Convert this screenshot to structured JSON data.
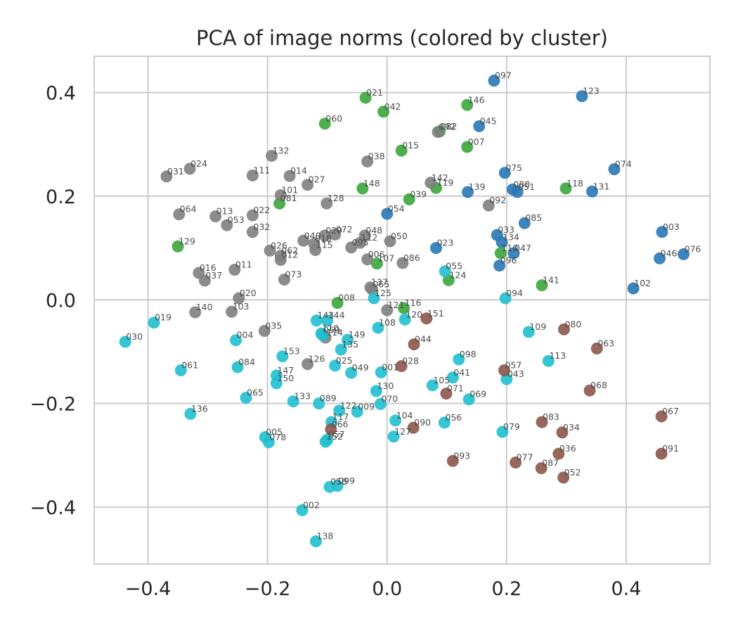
{
  "chart_data": {
    "type": "scatter",
    "title": "PCA of image norms (colored by cluster)",
    "xlabel": "",
    "ylabel": "",
    "xlim": [
      -0.49,
      0.54
    ],
    "ylim": [
      -0.51,
      0.47
    ],
    "xticks": [
      -0.4,
      -0.2,
      0.0,
      0.2,
      0.4
    ],
    "yticks": [
      -0.4,
      -0.2,
      0.0,
      0.2,
      0.4
    ],
    "xtick_labels": [
      "−0.4",
      "−0.2",
      "0.0",
      "0.2",
      "0.4"
    ],
    "ytick_labels": [
      "−0.4",
      "−0.2",
      "0.0",
      "0.2",
      "0.4"
    ],
    "grid": true,
    "legend": "none",
    "cluster_colors": {
      "blue": "#2878b5",
      "green": "#3aa63a",
      "gray": "#7f7f7f",
      "cyan": "#1fbfd0",
      "brown": "#8c564b"
    },
    "points": [
      {
        "label": "097",
        "x": 0.179,
        "y": 0.423,
        "cluster": "blue"
      },
      {
        "label": "123",
        "x": 0.326,
        "y": 0.393,
        "cluster": "blue"
      },
      {
        "label": "045",
        "x": 0.154,
        "y": 0.335,
        "cluster": "blue"
      },
      {
        "label": "075",
        "x": 0.197,
        "y": 0.245,
        "cluster": "blue"
      },
      {
        "label": "074",
        "x": 0.38,
        "y": 0.252,
        "cluster": "blue"
      },
      {
        "label": "088",
        "x": 0.21,
        "y": 0.213,
        "cluster": "blue"
      },
      {
        "label": "051",
        "x": 0.218,
        "y": 0.208,
        "cluster": "blue"
      },
      {
        "label": "139",
        "x": 0.135,
        "y": 0.208,
        "cluster": "blue"
      },
      {
        "label": "131",
        "x": 0.343,
        "y": 0.209,
        "cluster": "blue"
      },
      {
        "label": "054",
        "x": 0.0,
        "y": 0.166,
        "cluster": "blue"
      },
      {
        "label": "085",
        "x": 0.23,
        "y": 0.148,
        "cluster": "blue"
      },
      {
        "label": "003",
        "x": 0.46,
        "y": 0.131,
        "cluster": "blue"
      },
      {
        "label": "033",
        "x": 0.184,
        "y": 0.125,
        "cluster": "blue"
      },
      {
        "label": "134",
        "x": 0.192,
        "y": 0.111,
        "cluster": "blue"
      },
      {
        "label": "023",
        "x": 0.082,
        "y": 0.1,
        "cluster": "blue"
      },
      {
        "label": "047",
        "x": 0.212,
        "y": 0.09,
        "cluster": "blue"
      },
      {
        "label": "096",
        "x": 0.188,
        "y": 0.066,
        "cluster": "blue"
      },
      {
        "label": "046",
        "x": 0.456,
        "y": 0.08,
        "cluster": "blue"
      },
      {
        "label": "076",
        "x": 0.496,
        "y": 0.088,
        "cluster": "blue"
      },
      {
        "label": "102",
        "x": 0.412,
        "y": 0.022,
        "cluster": "blue"
      },
      {
        "label": "021",
        "x": -0.036,
        "y": 0.39,
        "cluster": "green"
      },
      {
        "label": "042",
        "x": -0.006,
        "y": 0.363,
        "cluster": "green"
      },
      {
        "label": "146",
        "x": 0.134,
        "y": 0.376,
        "cluster": "green"
      },
      {
        "label": "060",
        "x": -0.104,
        "y": 0.34,
        "cluster": "green"
      },
      {
        "label": "082",
        "x": 0.088,
        "y": 0.325,
        "cluster": "green"
      },
      {
        "label": "007",
        "x": 0.134,
        "y": 0.295,
        "cluster": "green"
      },
      {
        "label": "015",
        "x": 0.024,
        "y": 0.288,
        "cluster": "green"
      },
      {
        "label": "148",
        "x": -0.041,
        "y": 0.215,
        "cluster": "green"
      },
      {
        "label": "119",
        "x": 0.082,
        "y": 0.216,
        "cluster": "green"
      },
      {
        "label": "118",
        "x": 0.299,
        "y": 0.215,
        "cluster": "green"
      },
      {
        "label": "039",
        "x": 0.037,
        "y": 0.194,
        "cluster": "green"
      },
      {
        "label": "081",
        "x": -0.18,
        "y": 0.186,
        "cluster": "green"
      },
      {
        "label": "129",
        "x": -0.35,
        "y": 0.103,
        "cluster": "green"
      },
      {
        "label": "110",
        "x": 0.19,
        "y": 0.09,
        "cluster": "green"
      },
      {
        "label": "107",
        "x": -0.017,
        "y": 0.07,
        "cluster": "green"
      },
      {
        "label": "124",
        "x": 0.103,
        "y": 0.038,
        "cluster": "green"
      },
      {
        "label": "141",
        "x": 0.259,
        "y": 0.028,
        "cluster": "green"
      },
      {
        "label": "008",
        "x": -0.083,
        "y": -0.006,
        "cluster": "green"
      },
      {
        "label": "116",
        "x": 0.028,
        "y": -0.016,
        "cluster": "green"
      },
      {
        "label": "092",
        "x": 0.085,
        "y": 0.324,
        "cluster": "gray"
      },
      {
        "label": "132",
        "x": -0.193,
        "y": 0.278,
        "cluster": "gray"
      },
      {
        "label": "038",
        "x": -0.033,
        "y": 0.267,
        "cluster": "gray"
      },
      {
        "label": "024",
        "x": -0.33,
        "y": 0.253,
        "cluster": "gray"
      },
      {
        "label": "031",
        "x": -0.369,
        "y": 0.238,
        "cluster": "gray"
      },
      {
        "label": "111",
        "x": -0.225,
        "y": 0.24,
        "cluster": "gray"
      },
      {
        "label": "014",
        "x": -0.163,
        "y": 0.239,
        "cluster": "gray"
      },
      {
        "label": "027",
        "x": -0.133,
        "y": 0.222,
        "cluster": "gray"
      },
      {
        "label": "142",
        "x": 0.073,
        "y": 0.226,
        "cluster": "gray"
      },
      {
        "label": "101",
        "x": -0.178,
        "y": 0.202,
        "cluster": "gray"
      },
      {
        "label": "128",
        "x": -0.101,
        "y": 0.186,
        "cluster": "gray"
      },
      {
        "label": "092",
        "x": 0.17,
        "y": 0.182,
        "cluster": "gray"
      },
      {
        "label": "064",
        "x": -0.348,
        "y": 0.165,
        "cluster": "gray"
      },
      {
        "label": "013",
        "x": -0.287,
        "y": 0.161,
        "cluster": "gray"
      },
      {
        "label": "022",
        "x": -0.225,
        "y": 0.163,
        "cluster": "gray"
      },
      {
        "label": "053",
        "x": -0.268,
        "y": 0.144,
        "cluster": "gray"
      },
      {
        "label": "032",
        "x": -0.225,
        "y": 0.131,
        "cluster": "gray"
      },
      {
        "label": "029",
        "x": -0.104,
        "y": 0.124,
        "cluster": "gray"
      },
      {
        "label": "072",
        "x": -0.087,
        "y": 0.126,
        "cluster": "gray"
      },
      {
        "label": "048",
        "x": -0.037,
        "y": 0.124,
        "cluster": "gray"
      },
      {
        "label": "040",
        "x": -0.14,
        "y": 0.114,
        "cluster": "gray"
      },
      {
        "label": "018",
        "x": -0.122,
        "y": 0.108,
        "cluster": "gray"
      },
      {
        "label": "112",
        "x": -0.045,
        "y": 0.11,
        "cluster": "gray"
      },
      {
        "label": "050",
        "x": 0.005,
        "y": 0.113,
        "cluster": "gray"
      },
      {
        "label": "095",
        "x": -0.06,
        "y": 0.101,
        "cluster": "gray"
      },
      {
        "label": "115",
        "x": -0.12,
        "y": 0.096,
        "cluster": "gray"
      },
      {
        "label": "026",
        "x": -0.196,
        "y": 0.095,
        "cluster": "gray"
      },
      {
        "label": "062",
        "x": -0.178,
        "y": 0.085,
        "cluster": "gray"
      },
      {
        "label": "012",
        "x": -0.178,
        "y": 0.077,
        "cluster": "gray"
      },
      {
        "label": "006",
        "x": -0.033,
        "y": 0.078,
        "cluster": "gray"
      },
      {
        "label": "086",
        "x": 0.026,
        "y": 0.071,
        "cluster": "gray"
      },
      {
        "label": "011",
        "x": -0.255,
        "y": 0.058,
        "cluster": "gray"
      },
      {
        "label": "016",
        "x": -0.315,
        "y": 0.052,
        "cluster": "gray"
      },
      {
        "label": "037",
        "x": -0.305,
        "y": 0.037,
        "cluster": "gray"
      },
      {
        "label": "073",
        "x": -0.172,
        "y": 0.039,
        "cluster": "gray"
      },
      {
        "label": "137",
        "x": -0.028,
        "y": 0.024,
        "cluster": "gray"
      },
      {
        "label": "065",
        "x": -0.025,
        "y": 0.02,
        "cluster": "gray"
      },
      {
        "label": "020",
        "x": -0.248,
        "y": 0.003,
        "cluster": "gray"
      },
      {
        "label": "140",
        "x": -0.321,
        "y": -0.024,
        "cluster": "gray"
      },
      {
        "label": "103",
        "x": -0.26,
        "y": -0.023,
        "cluster": "gray"
      },
      {
        "label": "121",
        "x": 0.0,
        "y": -0.02,
        "cluster": "gray"
      },
      {
        "label": "035",
        "x": -0.205,
        "y": -0.06,
        "cluster": "gray"
      },
      {
        "label": "126",
        "x": -0.133,
        "y": -0.124,
        "cluster": "gray"
      },
      {
        "label": "114",
        "x": -0.103,
        "y": -0.073,
        "cluster": "gray"
      },
      {
        "label": "125",
        "x": -0.022,
        "y": 0.003,
        "cluster": "cyan"
      },
      {
        "label": "055",
        "x": 0.097,
        "y": 0.055,
        "cluster": "cyan"
      },
      {
        "label": "094",
        "x": 0.198,
        "y": 0.003,
        "cluster": "cyan"
      },
      {
        "label": "019",
        "x": -0.39,
        "y": -0.044,
        "cluster": "cyan"
      },
      {
        "label": "143",
        "x": -0.118,
        "y": -0.04,
        "cluster": "cyan"
      },
      {
        "label": "144",
        "x": -0.1,
        "y": -0.04,
        "cluster": "cyan"
      },
      {
        "label": "120",
        "x": 0.03,
        "y": -0.038,
        "cluster": "cyan"
      },
      {
        "label": "108",
        "x": -0.015,
        "y": -0.054,
        "cluster": "cyan"
      },
      {
        "label": "109",
        "x": 0.237,
        "y": -0.062,
        "cluster": "cyan"
      },
      {
        "label": "110",
        "x": -0.11,
        "y": -0.065,
        "cluster": "cyan"
      },
      {
        "label": "059",
        "x": -0.108,
        "y": -0.068,
        "cluster": "cyan"
      },
      {
        "label": "030",
        "x": -0.438,
        "y": -0.081,
        "cluster": "cyan"
      },
      {
        "label": "004",
        "x": -0.253,
        "y": -0.078,
        "cluster": "cyan"
      },
      {
        "label": "149",
        "x": -0.066,
        "y": -0.077,
        "cluster": "cyan"
      },
      {
        "label": "135",
        "x": -0.077,
        "y": -0.096,
        "cluster": "cyan"
      },
      {
        "label": "153",
        "x": -0.175,
        "y": -0.109,
        "cluster": "cyan"
      },
      {
        "label": "098",
        "x": 0.12,
        "y": -0.115,
        "cluster": "cyan"
      },
      {
        "label": "113",
        "x": 0.27,
        "y": -0.118,
        "cluster": "cyan"
      },
      {
        "label": "025",
        "x": -0.087,
        "y": -0.127,
        "cluster": "cyan"
      },
      {
        "label": "061",
        "x": -0.345,
        "y": -0.136,
        "cluster": "cyan"
      },
      {
        "label": "084",
        "x": -0.25,
        "y": -0.13,
        "cluster": "cyan"
      },
      {
        "label": "049",
        "x": -0.06,
        "y": -0.141,
        "cluster": "cyan"
      },
      {
        "label": "001",
        "x": -0.01,
        "y": -0.14,
        "cluster": "cyan"
      },
      {
        "label": "147",
        "x": -0.185,
        "y": -0.146,
        "cluster": "cyan"
      },
      {
        "label": "150",
        "x": -0.185,
        "y": -0.161,
        "cluster": "cyan"
      },
      {
        "label": "041",
        "x": 0.11,
        "y": -0.15,
        "cluster": "cyan"
      },
      {
        "label": "043",
        "x": 0.2,
        "y": -0.153,
        "cluster": "cyan"
      },
      {
        "label": "105",
        "x": 0.076,
        "y": -0.165,
        "cluster": "cyan"
      },
      {
        "label": "130",
        "x": -0.018,
        "y": -0.176,
        "cluster": "cyan"
      },
      {
        "label": "065",
        "x": -0.236,
        "y": -0.189,
        "cluster": "cyan"
      },
      {
        "label": "133",
        "x": -0.157,
        "y": -0.196,
        "cluster": "cyan"
      },
      {
        "label": "089",
        "x": -0.114,
        "y": -0.2,
        "cluster": "cyan"
      },
      {
        "label": "070",
        "x": -0.011,
        "y": -0.201,
        "cluster": "cyan"
      },
      {
        "label": "069",
        "x": 0.137,
        "y": -0.192,
        "cluster": "cyan"
      },
      {
        "label": "122",
        "x": -0.08,
        "y": -0.214,
        "cluster": "cyan"
      },
      {
        "label": "009",
        "x": -0.05,
        "y": -0.216,
        "cluster": "cyan"
      },
      {
        "label": "136",
        "x": -0.329,
        "y": -0.22,
        "cluster": "cyan"
      },
      {
        "label": "104",
        "x": 0.014,
        "y": -0.233,
        "cluster": "cyan"
      },
      {
        "label": "117",
        "x": -0.093,
        "y": -0.236,
        "cluster": "cyan"
      },
      {
        "label": "056",
        "x": 0.096,
        "y": -0.237,
        "cluster": "cyan"
      },
      {
        "label": "079",
        "x": 0.193,
        "y": -0.255,
        "cluster": "cyan"
      },
      {
        "label": "005",
        "x": -0.204,
        "y": -0.265,
        "cluster": "cyan"
      },
      {
        "label": "078",
        "x": -0.198,
        "y": -0.275,
        "cluster": "cyan"
      },
      {
        "label": "127",
        "x": 0.011,
        "y": -0.264,
        "cluster": "cyan"
      },
      {
        "label": "057",
        "x": -0.1,
        "y": -0.27,
        "cluster": "cyan"
      },
      {
        "label": "152",
        "x": -0.103,
        "y": -0.274,
        "cluster": "cyan"
      },
      {
        "label": "058",
        "x": -0.096,
        "y": -0.361,
        "cluster": "cyan"
      },
      {
        "label": "099",
        "x": -0.083,
        "y": -0.359,
        "cluster": "cyan"
      },
      {
        "label": "002",
        "x": -0.142,
        "y": -0.406,
        "cluster": "cyan"
      },
      {
        "label": "138",
        "x": -0.119,
        "y": -0.466,
        "cluster": "cyan"
      },
      {
        "label": "151",
        "x": 0.066,
        "y": -0.036,
        "cluster": "brown"
      },
      {
        "label": "080",
        "x": 0.296,
        "y": -0.057,
        "cluster": "brown"
      },
      {
        "label": "044",
        "x": 0.045,
        "y": -0.086,
        "cluster": "brown"
      },
      {
        "label": "063",
        "x": 0.351,
        "y": -0.094,
        "cluster": "brown"
      },
      {
        "label": "028",
        "x": 0.024,
        "y": -0.128,
        "cluster": "brown"
      },
      {
        "label": "057",
        "x": 0.196,
        "y": -0.136,
        "cluster": "brown"
      },
      {
        "label": "071",
        "x": 0.099,
        "y": -0.181,
        "cluster": "brown"
      },
      {
        "label": "068",
        "x": 0.339,
        "y": -0.175,
        "cluster": "brown"
      },
      {
        "label": "067",
        "x": 0.459,
        "y": -0.225,
        "cluster": "brown"
      },
      {
        "label": "083",
        "x": 0.259,
        "y": -0.236,
        "cluster": "brown"
      },
      {
        "label": "034",
        "x": 0.293,
        "y": -0.256,
        "cluster": "brown"
      },
      {
        "label": "090",
        "x": 0.044,
        "y": -0.247,
        "cluster": "brown"
      },
      {
        "label": "066",
        "x": -0.094,
        "y": -0.25,
        "cluster": "brown"
      },
      {
        "label": "036",
        "x": 0.287,
        "y": -0.297,
        "cluster": "brown"
      },
      {
        "label": "091",
        "x": 0.459,
        "y": -0.297,
        "cluster": "brown"
      },
      {
        "label": "093",
        "x": 0.11,
        "y": -0.311,
        "cluster": "brown"
      },
      {
        "label": "077",
        "x": 0.215,
        "y": -0.314,
        "cluster": "brown"
      },
      {
        "label": "087",
        "x": 0.258,
        "y": -0.325,
        "cluster": "brown"
      },
      {
        "label": "052",
        "x": 0.295,
        "y": -0.343,
        "cluster": "brown"
      }
    ]
  }
}
